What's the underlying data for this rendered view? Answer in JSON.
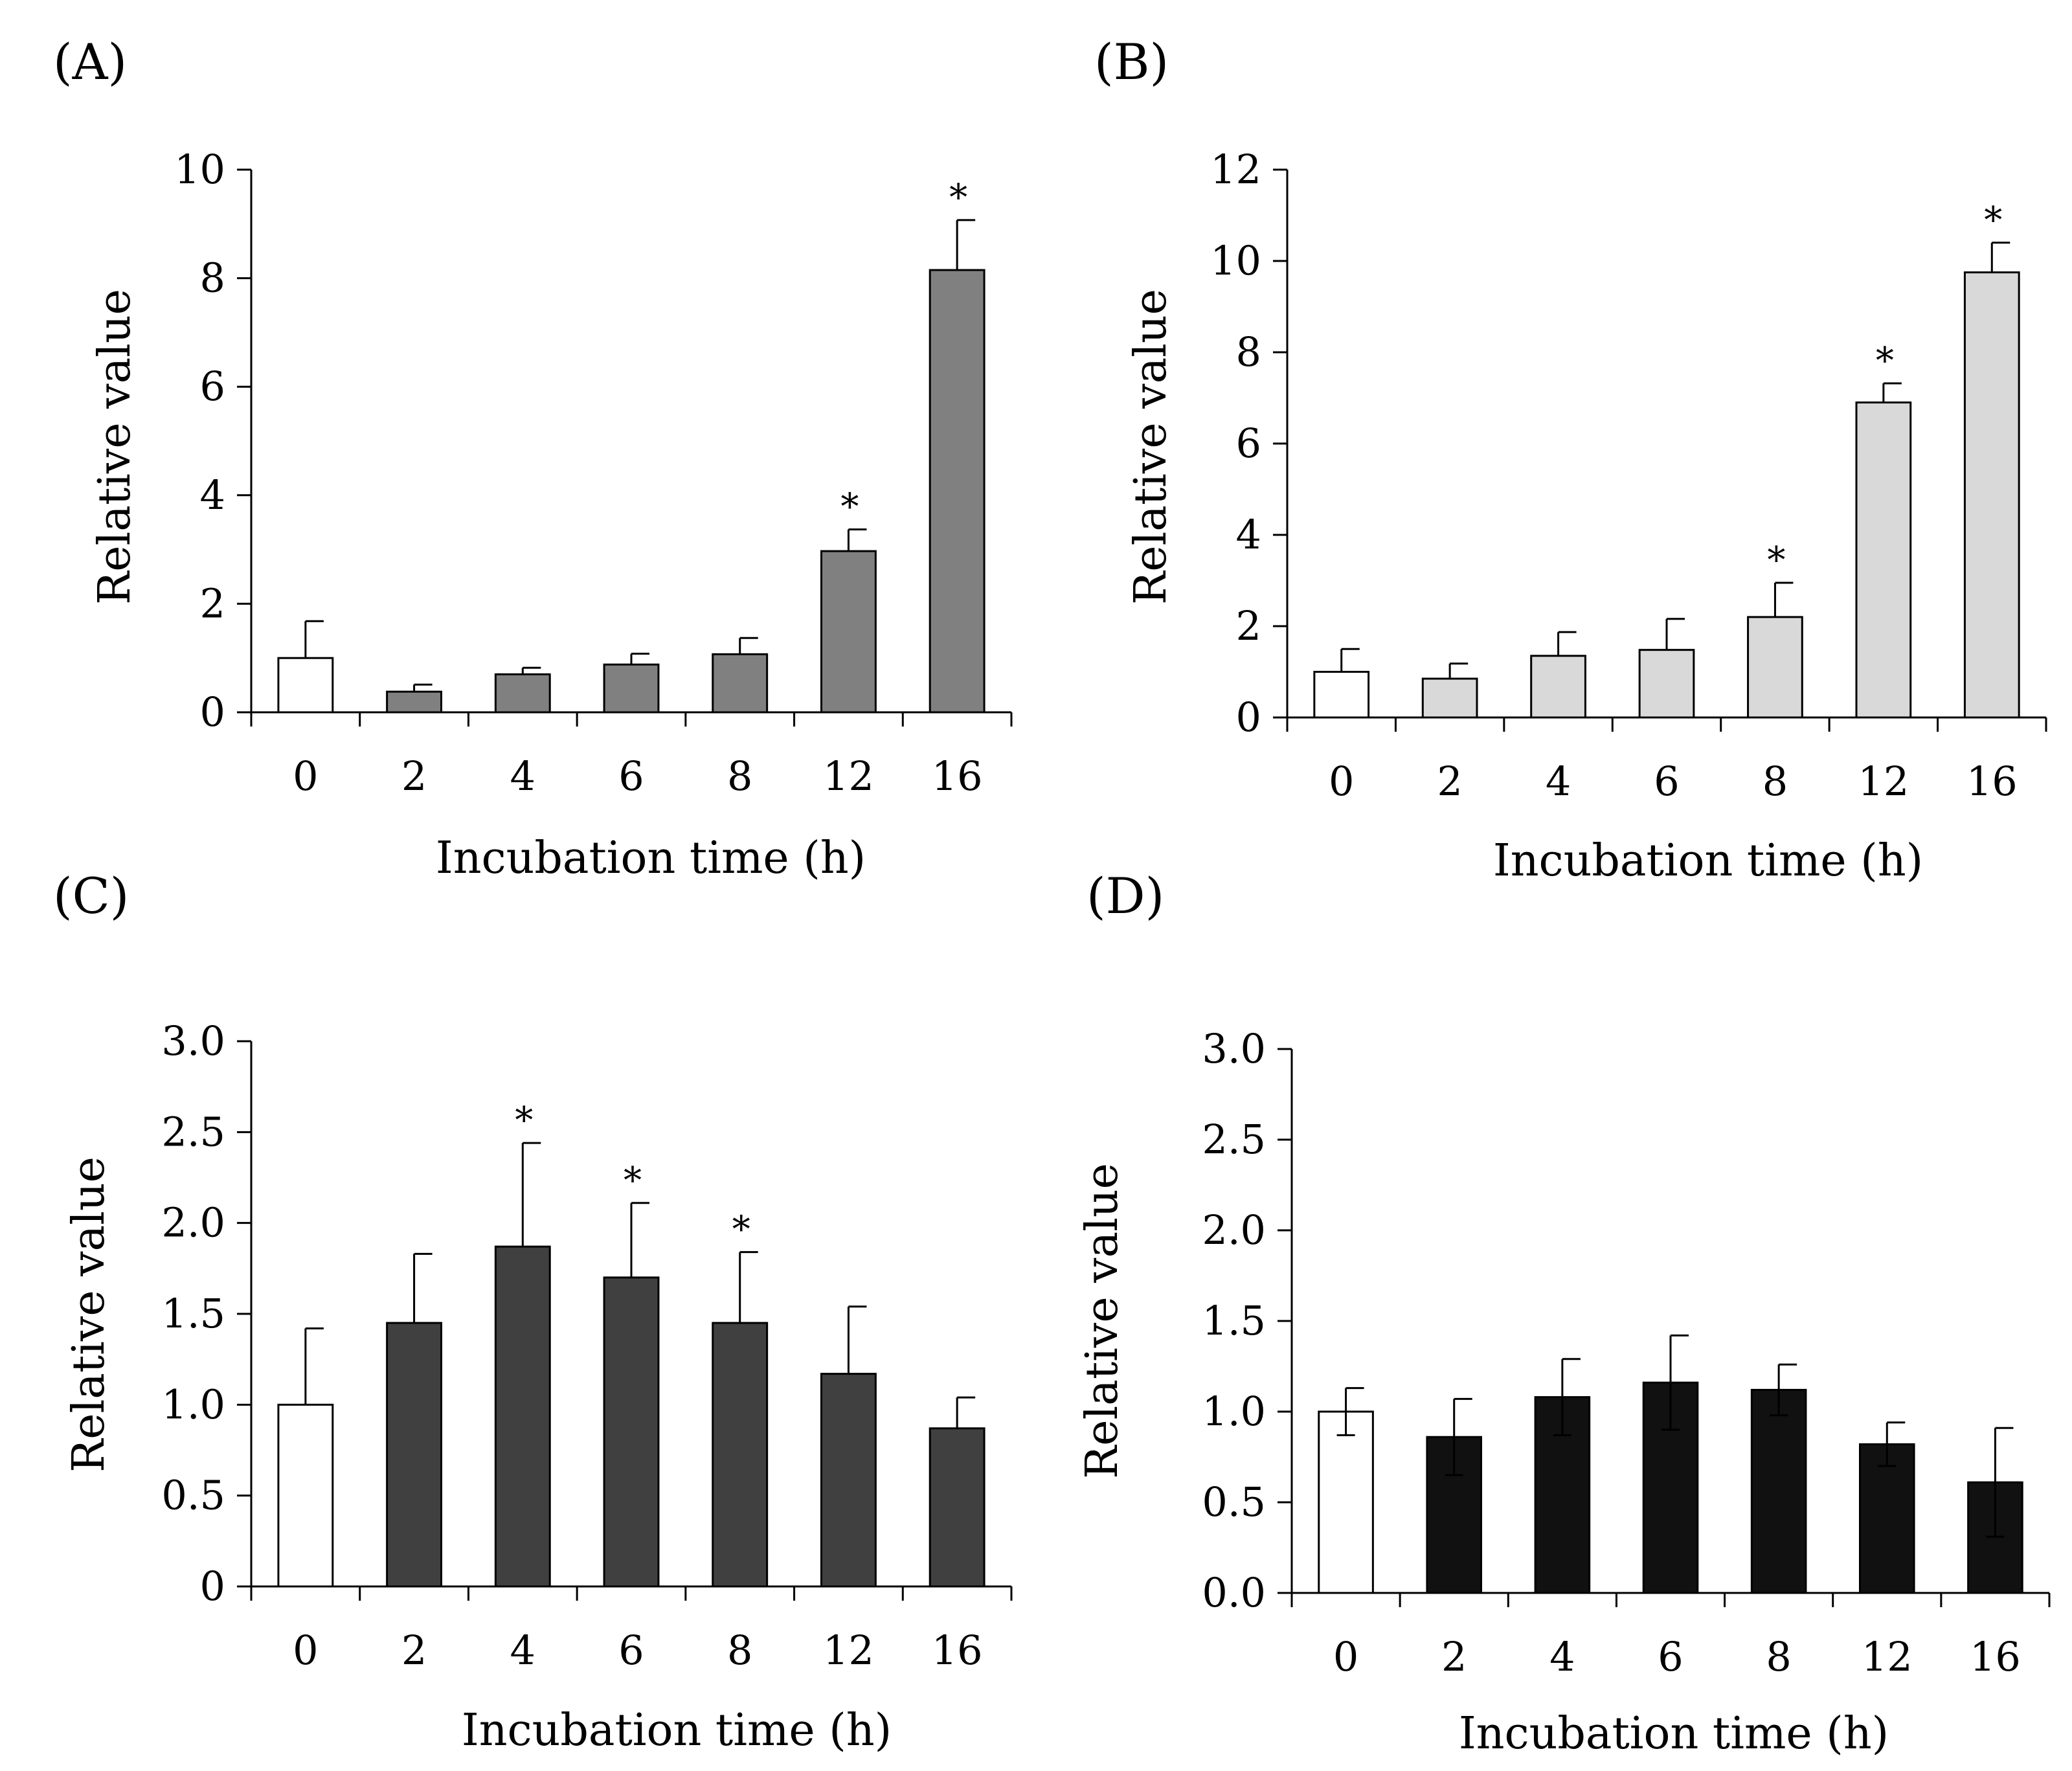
{
  "figure_title": "",
  "chart_data": [
    {
      "panel": "(A)",
      "type": "bar",
      "categories": [
        "0",
        "2",
        "4",
        "6",
        "8",
        "12",
        "16"
      ],
      "values": [
        1.0,
        0.38,
        0.7,
        0.88,
        1.07,
        2.97,
        8.15
      ],
      "errors": [
        0.68,
        0.13,
        0.12,
        0.2,
        0.3,
        0.4,
        0.92
      ],
      "significant": [
        false,
        false,
        false,
        false,
        false,
        true,
        true
      ],
      "significance_marker": "*",
      "xlabel": "Incubation time (h)",
      "ylabel": "Relative value",
      "ylim": [
        0,
        10
      ],
      "yticks": [
        "0",
        "2",
        "4",
        "6",
        "8",
        "10"
      ],
      "control_color": "#ffffff",
      "bar_color": "#808080"
    },
    {
      "panel": "(B)",
      "type": "bar",
      "categories": [
        "0",
        "2",
        "4",
        "6",
        "8",
        "12",
        "16"
      ],
      "values": [
        1.0,
        0.85,
        1.35,
        1.48,
        2.2,
        6.9,
        9.75
      ],
      "errors": [
        0.5,
        0.33,
        0.52,
        0.68,
        0.75,
        0.42,
        0.65
      ],
      "significant": [
        false,
        false,
        false,
        false,
        true,
        true,
        true
      ],
      "significance_marker": "*",
      "xlabel": "Incubation time (h)",
      "ylabel": "Relative value",
      "ylim": [
        0,
        12
      ],
      "yticks": [
        "0",
        "2",
        "4",
        "6",
        "8",
        "10",
        "12"
      ],
      "control_color": "#ffffff",
      "bar_color": "#d9d9d9"
    },
    {
      "panel": "(C)",
      "type": "bar",
      "categories": [
        "0",
        "2",
        "4",
        "6",
        "8",
        "12",
        "16"
      ],
      "values": [
        1.0,
        1.45,
        1.87,
        1.7,
        1.45,
        1.17,
        0.87
      ],
      "errors": [
        0.42,
        0.38,
        0.57,
        0.41,
        0.39,
        0.37,
        0.17
      ],
      "significant": [
        false,
        false,
        true,
        true,
        true,
        false,
        false
      ],
      "significance_marker": "*",
      "xlabel": "Incubation time (h)",
      "ylabel": "Relative value",
      "ylim": [
        0,
        3.0
      ],
      "yticks": [
        "0",
        "0.5",
        "1.0",
        "1.5",
        "2.0",
        "2.5",
        "3.0"
      ],
      "control_color": "#ffffff",
      "bar_color": "#404040"
    },
    {
      "panel": "(D)",
      "type": "bar",
      "categories": [
        "0",
        "2",
        "4",
        "6",
        "8",
        "12",
        "16"
      ],
      "values": [
        1.0,
        0.86,
        1.08,
        1.16,
        1.12,
        0.82,
        0.61
      ],
      "errors": [
        0.13,
        0.21,
        0.21,
        0.26,
        0.14,
        0.12,
        0.3
      ],
      "significant": [
        false,
        false,
        false,
        false,
        false,
        false,
        false
      ],
      "significance_marker": "*",
      "xlabel": "Incubation time (h)",
      "ylabel": "Relative value",
      "ylim": [
        0,
        3.0
      ],
      "yticks": [
        "0.0",
        "0.5",
        "1.0",
        "1.5",
        "2.0",
        "2.5",
        "3.0"
      ],
      "control_color": "#ffffff",
      "bar_color": "#111111"
    }
  ]
}
